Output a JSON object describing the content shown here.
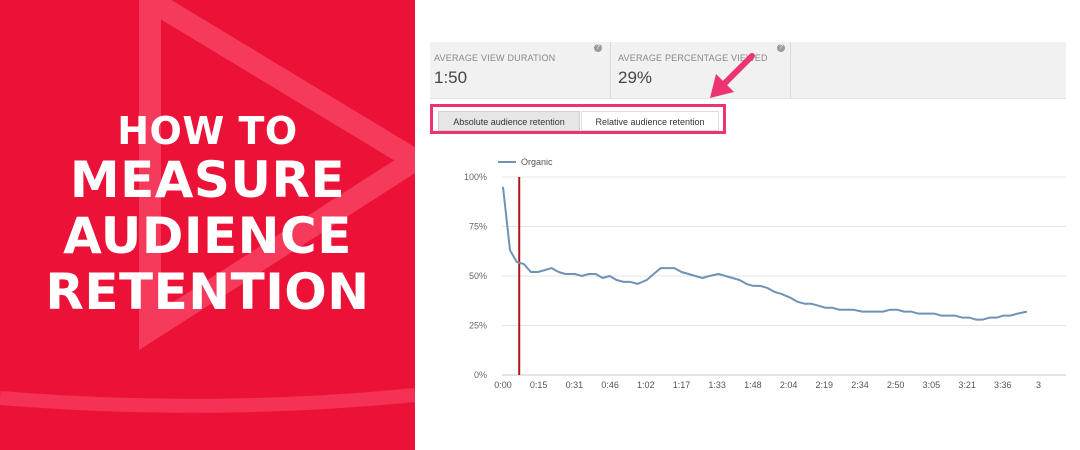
{
  "headline": {
    "line1": "HOW TO",
    "line2": "MEASURE",
    "line3": "AUDIENCE",
    "line4": "RETENTION"
  },
  "metrics": [
    {
      "label": "AVERAGE VIEW DURATION",
      "value": "1:50"
    },
    {
      "label": "AVERAGE PERCENTAGE VIEWED",
      "value": "29%"
    }
  ],
  "tabs": {
    "absolute": "Absolute audience retention",
    "relative": "Relative audience retention"
  },
  "colors": {
    "banner": "#ec1237",
    "highlight": "#ec3374",
    "line": "#6e93b6",
    "marker": "#b0141b"
  },
  "chart_data": {
    "type": "line",
    "legend": "Organic",
    "legend_position": "top-left",
    "y_ticks": [
      "0%",
      "25%",
      "50%",
      "75%",
      "100%"
    ],
    "ylim": [
      0,
      100
    ],
    "x_ticks": [
      "0:00",
      "0:15",
      "0:31",
      "0:46",
      "1:02",
      "1:17",
      "1:33",
      "1:48",
      "2:04",
      "2:19",
      "2:34",
      "2:50",
      "3:05",
      "3:21",
      "3:36",
      "3"
    ],
    "x_seconds": [
      0,
      3,
      6,
      9,
      12,
      15,
      18,
      21,
      24,
      27,
      31,
      34,
      37,
      40,
      43,
      46,
      49,
      52,
      55,
      58,
      62,
      65,
      68,
      71,
      74,
      77,
      80,
      83,
      86,
      89,
      93,
      96,
      99,
      102,
      105,
      108,
      111,
      114,
      117,
      120,
      124,
      127,
      130,
      133,
      136,
      139,
      142,
      145,
      148,
      151,
      155,
      158,
      161,
      164,
      167,
      170,
      173,
      176,
      179,
      182,
      186,
      189,
      192,
      195,
      198,
      201,
      204,
      207,
      210,
      213,
      216,
      219,
      222,
      226
    ],
    "values": [
      95,
      63,
      57,
      56,
      52,
      52,
      53,
      54,
      52,
      51,
      51,
      50,
      51,
      51,
      49,
      50,
      48,
      47,
      47,
      46,
      48,
      51,
      54,
      54,
      54,
      52,
      51,
      50,
      49,
      50,
      51,
      50,
      49,
      48,
      46,
      45,
      45,
      44,
      42,
      41,
      39,
      37,
      36,
      36,
      35,
      34,
      34,
      33,
      33,
      33,
      32,
      32,
      32,
      32,
      33,
      33,
      32,
      32,
      31,
      31,
      31,
      30,
      30,
      30,
      29,
      29,
      28,
      28,
      29,
      29,
      30,
      30,
      31,
      32
    ],
    "marker_at": 7,
    "grid": true
  }
}
